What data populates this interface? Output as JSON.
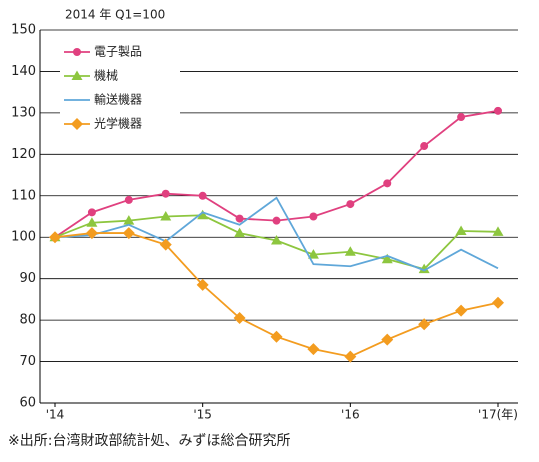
{
  "chart_data": {
    "type": "line",
    "annotation": "2014 年 Q1=100",
    "source": "※出所:台湾財政部統計処、みずほ総合研究所",
    "categories": [
      "'14",
      null,
      null,
      null,
      "'15",
      null,
      null,
      null,
      "'16",
      null,
      null,
      null,
      "'17(年)"
    ],
    "series": [
      {
        "name": "電子製品",
        "color": "#e0407f",
        "marker": "circle",
        "values": [
          100,
          106,
          109,
          110.5,
          110,
          104.5,
          104,
          105,
          108,
          113,
          122,
          129,
          130.5
        ]
      },
      {
        "name": "機械",
        "color": "#8dc63f",
        "marker": "triangle",
        "values": [
          100,
          103.5,
          104,
          105,
          105.3,
          101,
          99.2,
          95.8,
          96.5,
          94.7,
          92.3,
          101.5,
          101.3
        ]
      },
      {
        "name": "輸送機器",
        "color": "#5fa7d9",
        "marker": "none",
        "values": [
          100,
          100.5,
          103,
          99,
          106,
          103,
          109.5,
          93.5,
          93,
          95.5,
          92,
          97,
          92.5
        ]
      },
      {
        "name": "光学機器",
        "color": "#f39c1f",
        "marker": "diamond",
        "values": [
          100,
          101,
          101,
          98.2,
          88.5,
          80.5,
          76,
          73,
          71.2,
          75.3,
          79,
          82.3,
          84.2
        ]
      }
    ],
    "ylim": [
      60,
      150
    ],
    "yticks": [
      60,
      70,
      80,
      90,
      100,
      110,
      120,
      130,
      140,
      150
    ],
    "grid": true,
    "legend": "upper left"
  }
}
